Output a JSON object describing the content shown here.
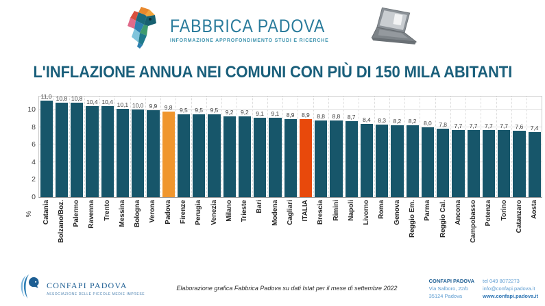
{
  "header": {
    "logo_title": "FABBRICA PADOVA",
    "logo_subtitle": "INFORMAZIONE APPROFONDIMENTO STUDI E RICERCHE"
  },
  "title": "L'INFLAZIONE ANNUA NEI COMUNI CON PIÙ DI 150 MILA ABITANTI",
  "chart_data": {
    "type": "bar",
    "title": "L'INFLAZIONE ANNUA NEI COMUNI CON PIÙ DI 150 MILA ABITANTI",
    "categories": [
      "Catania",
      "Bolzano/Boz.",
      "Palermo",
      "Ravenna",
      "Trento",
      "Messina",
      "Bologna",
      "Verona",
      "Padova",
      "Firenze",
      "Perugia",
      "Venezia",
      "Milano",
      "Trieste",
      "Bari",
      "Modena",
      "Cagliari",
      "ITALIA",
      "Brescia",
      "Rimini",
      "Napoli",
      "Livorno",
      "Roma",
      "Genova",
      "Reggio Em.",
      "Parma",
      "Reggio Cal.",
      "Ancona",
      "Campobasso",
      "Potenza",
      "Torino",
      "Catanzaro",
      "Aosta"
    ],
    "values": [
      11.0,
      10.8,
      10.8,
      10.4,
      10.4,
      10.1,
      10.0,
      9.9,
      9.8,
      9.5,
      9.5,
      9.5,
      9.2,
      9.2,
      9.1,
      9.1,
      8.9,
      8.9,
      8.8,
      8.8,
      8.7,
      8.4,
      8.3,
      8.2,
      8.2,
      8.0,
      7.8,
      7.7,
      7.7,
      7.7,
      7.7,
      7.6,
      7.4
    ],
    "bar_color": "#17566A",
    "highlights": {
      "Padova": "#F0962E",
      "ITALIA": "#E8490B"
    },
    "ylabel": "%",
    "yticks": [
      0,
      2,
      4,
      6,
      8,
      10
    ],
    "ylim": [
      0,
      11.5
    ],
    "grid": true,
    "legend": false
  },
  "footer": {
    "confapi_logo_title": "CONFAPI PADOVA",
    "confapi_logo_subtitle": "ASSOCIAZIONE DELLE PICCOLE MEDIE IMPRESE",
    "caption": "Elaborazione grafica Fabbrica Padova su dati Istat per il mese di settembre 2022",
    "contact": {
      "name": "CONFAPI PADOVA",
      "address1": "Via Salboro, 22/b",
      "address2": "35124 Padova",
      "tel": "tel 049 8072273",
      "email": "info@confapi.padova.it",
      "web": "www.confapi.padova.it"
    }
  }
}
